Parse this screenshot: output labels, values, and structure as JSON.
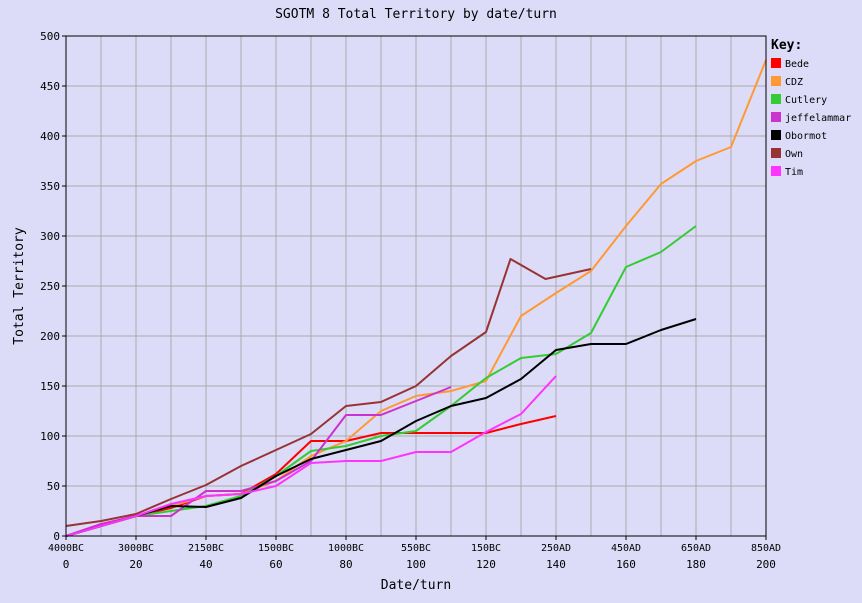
{
  "chart_data": {
    "type": "line",
    "title": "SGOTM 8 Total Territory by date/turn",
    "xlabel": "Date/turn",
    "ylabel": "Total Territory",
    "xlim": [
      0,
      200
    ],
    "ylim": [
      0,
      500
    ],
    "grid": true,
    "legend_title": "Key:",
    "legend_position": "right",
    "x_ticks": [
      0,
      20,
      40,
      60,
      80,
      100,
      120,
      140,
      160,
      180,
      200
    ],
    "x_date_labels": [
      "4000BC",
      "3000BC",
      "2150BC",
      "1500BC",
      "1000BC",
      "550BC",
      "150BC",
      "250AD",
      "450AD",
      "650AD",
      "850AD"
    ],
    "y_ticks": [
      0,
      50,
      100,
      150,
      200,
      250,
      300,
      350,
      400,
      450,
      500
    ],
    "series": [
      {
        "name": "Bede",
        "color": "#ff0000",
        "x": [
          0,
          10,
          20,
          30,
          40,
          50,
          60,
          70,
          80,
          90,
          100,
          110,
          120,
          130,
          140
        ],
        "y": [
          0,
          10,
          20,
          28,
          40,
          42,
          62,
          95,
          95,
          103,
          103,
          103,
          103,
          112,
          120
        ]
      },
      {
        "name": "CDZ",
        "color": "#ff9933",
        "x": [
          0,
          10,
          20,
          30,
          40,
          50,
          60,
          70,
          80,
          90,
          100,
          110,
          120,
          130,
          140,
          150,
          160,
          170,
          180,
          190,
          200
        ],
        "y": [
          0,
          10,
          20,
          30,
          40,
          42,
          55,
          80,
          95,
          125,
          140,
          145,
          155,
          220,
          243,
          265,
          310,
          352,
          375,
          389,
          476
        ]
      },
      {
        "name": "Cutlery",
        "color": "#33cc33",
        "x": [
          0,
          10,
          20,
          30,
          40,
          50,
          60,
          70,
          80,
          90,
          100,
          110,
          120,
          130,
          140,
          150,
          160,
          170,
          180
        ],
        "y": [
          0,
          10,
          20,
          25,
          30,
          40,
          60,
          85,
          90,
          100,
          105,
          130,
          158,
          178,
          182,
          203,
          269,
          284,
          310
        ]
      },
      {
        "name": "jeffelammar",
        "color": "#cc33cc",
        "x": [
          0,
          10,
          20,
          30,
          40,
          50,
          60,
          70,
          80,
          90,
          100,
          110
        ],
        "y": [
          0,
          12,
          20,
          20,
          45,
          45,
          55,
          75,
          121,
          121,
          135,
          149
        ]
      },
      {
        "name": "Obormot",
        "color": "#000000",
        "x": [
          0,
          10,
          20,
          30,
          40,
          50,
          60,
          70,
          80,
          90,
          100,
          110,
          120,
          130,
          140,
          150,
          160,
          170,
          180
        ],
        "y": [
          0,
          10,
          20,
          30,
          29,
          38,
          60,
          77,
          86,
          95,
          115,
          130,
          138,
          157,
          186,
          192,
          192,
          206,
          217
        ]
      },
      {
        "name": "Own",
        "color": "#993333",
        "x": [
          0,
          10,
          20,
          30,
          40,
          50,
          60,
          70,
          80,
          90,
          100,
          110,
          120,
          127,
          137,
          150
        ],
        "y": [
          10,
          15,
          22,
          37,
          51,
          70,
          86,
          102,
          130,
          134,
          150,
          180,
          204,
          277,
          257,
          267
        ]
      },
      {
        "name": "Tim",
        "color": "#ff33ff",
        "x": [
          0,
          10,
          20,
          30,
          40,
          50,
          60,
          70,
          80,
          90,
          100,
          110,
          120,
          130,
          140
        ],
        "y": [
          0,
          10,
          20,
          32,
          40,
          42,
          50,
          73,
          75,
          75,
          84,
          84,
          104,
          122,
          160
        ]
      }
    ]
  }
}
